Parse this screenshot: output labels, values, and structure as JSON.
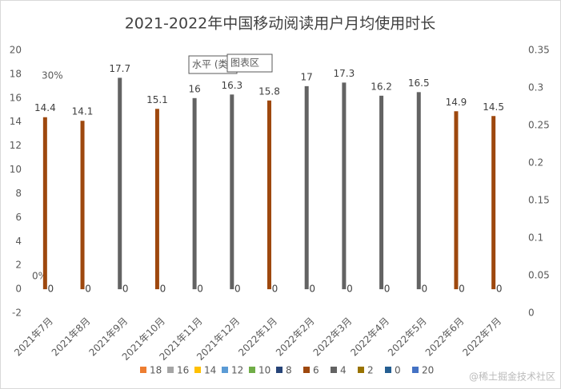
{
  "chart_data": {
    "type": "bar",
    "title": "2021-2022年中国移动阅读用户月均使用时长",
    "categories": [
      "2021年7月",
      "2021年8月",
      "2021年9月",
      "2021年10月",
      "2021年11月",
      "2021年12月",
      "2022年1月",
      "2022年2月",
      "2022年3月",
      "2022年4月",
      "2022年5月",
      "2022年6月",
      "2022年7月"
    ],
    "series": [
      {
        "values": [
          14.4,
          14.1,
          17.7,
          15.1,
          16,
          16.3,
          15.8,
          17,
          17.3,
          16.2,
          16.5,
          14.9,
          14.5
        ],
        "colors": [
          "#9E480E",
          "#9E480E",
          "#636363",
          "#9E480E",
          "#636363",
          "#636363",
          "#9E480E",
          "#636363",
          "#636363",
          "#636363",
          "#636363",
          "#9E480E",
          "#9E480E"
        ]
      },
      {
        "values": [
          0,
          0,
          0,
          0,
          0,
          0,
          0,
          0,
          0,
          0,
          0,
          0,
          0
        ]
      }
    ],
    "ylim": [
      -2,
      20
    ],
    "yticks": [
      -2,
      0,
      2,
      4,
      6,
      8,
      10,
      12,
      14,
      16,
      18,
      20
    ],
    "y2lim": [
      0,
      0.35
    ],
    "y2ticks": [
      0,
      0.05,
      0.1,
      0.15,
      0.2,
      0.25,
      0.3,
      0.35
    ],
    "legend": [
      {
        "label": "18",
        "color": "#ED7D31"
      },
      {
        "label": "16",
        "color": "#A5A5A5"
      },
      {
        "label": "14",
        "color": "#FFC000"
      },
      {
        "label": "12",
        "color": "#5B9BD5"
      },
      {
        "label": "10",
        "color": "#70AD47"
      },
      {
        "label": "8",
        "color": "#264478"
      },
      {
        "label": "6",
        "color": "#9E480E"
      },
      {
        "label": "4",
        "color": "#636363"
      },
      {
        "label": "2",
        "color": "#997300"
      },
      {
        "label": "0",
        "color": "#255E91"
      },
      {
        "label": "20",
        "color": "#4472C4"
      }
    ],
    "annotations": [
      "30%",
      "0%",
      "水平 (类",
      "图表区"
    ],
    "watermark": "@稀土掘金技术社区"
  }
}
